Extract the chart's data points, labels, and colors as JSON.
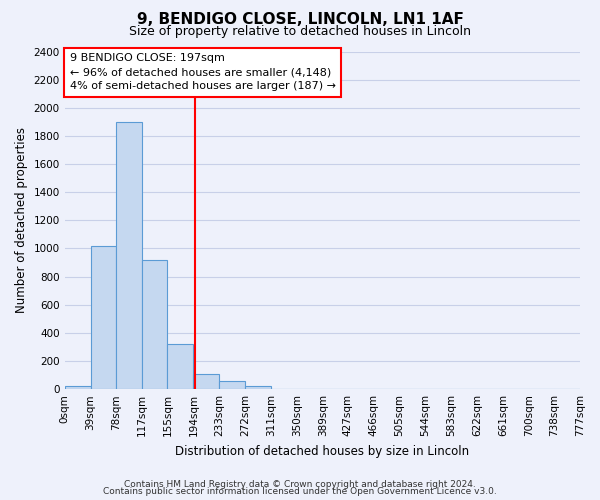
{
  "title": "9, BENDIGO CLOSE, LINCOLN, LN1 1AF",
  "subtitle": "Size of property relative to detached houses in Lincoln",
  "xlabel": "Distribution of detached houses by size in Lincoln",
  "ylabel": "Number of detached properties",
  "bar_edges": [
    0,
    39,
    78,
    117,
    155,
    194,
    233,
    272,
    311,
    350,
    389,
    427,
    466,
    505,
    544,
    583,
    622,
    661,
    700,
    738,
    777
  ],
  "bar_heights": [
    20,
    1020,
    1900,
    920,
    320,
    110,
    55,
    25,
    0,
    0,
    0,
    0,
    0,
    0,
    0,
    0,
    0,
    0,
    0,
    0
  ],
  "bar_color": "#c5d8f0",
  "bar_edgecolor": "#5b9bd5",
  "property_line_x": 197,
  "property_line_color": "red",
  "annotation_line1": "9 BENDIGO CLOSE: 197sqm",
  "annotation_line2": "← 96% of detached houses are smaller (4,148)",
  "annotation_line3": "4% of semi-detached houses are larger (187) →",
  "annotation_box_color": "white",
  "annotation_box_edgecolor": "red",
  "ylim": [
    0,
    2400
  ],
  "yticks": [
    0,
    200,
    400,
    600,
    800,
    1000,
    1200,
    1400,
    1600,
    1800,
    2000,
    2200,
    2400
  ],
  "tick_labels": [
    "0sqm",
    "39sqm",
    "78sqm",
    "117sqm",
    "155sqm",
    "194sqm",
    "233sqm",
    "272sqm",
    "311sqm",
    "350sqm",
    "389sqm",
    "427sqm",
    "466sqm",
    "505sqm",
    "544sqm",
    "583sqm",
    "622sqm",
    "661sqm",
    "700sqm",
    "738sqm",
    "777sqm"
  ],
  "footer1": "Contains HM Land Registry data © Crown copyright and database right 2024.",
  "footer2": "Contains public sector information licensed under the Open Government Licence v3.0.",
  "background_color": "#eef1fb",
  "grid_color": "#c8d0e8"
}
